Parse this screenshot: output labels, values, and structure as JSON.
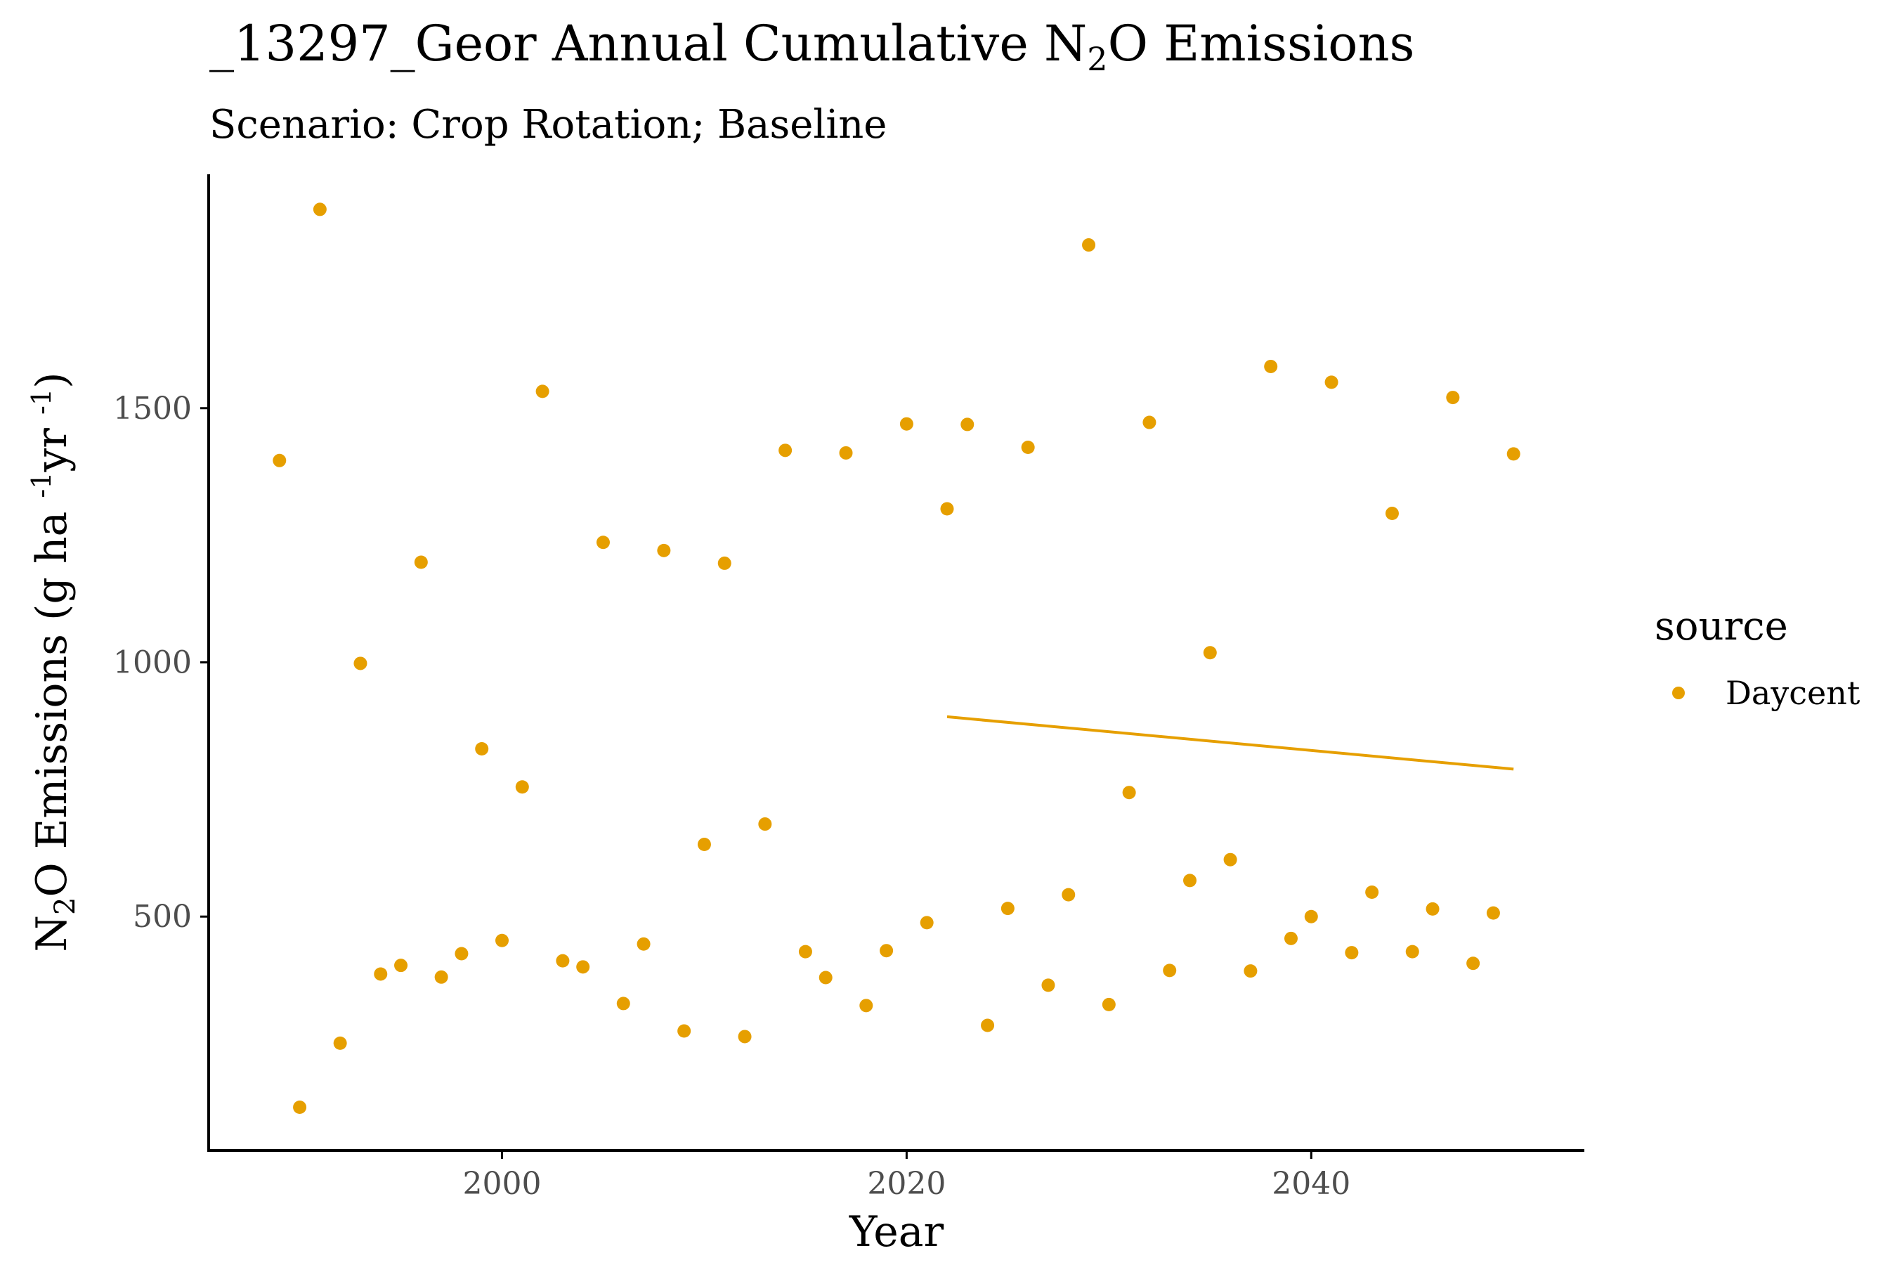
{
  "colors": {
    "daycent": "#E69F00",
    "axis": "#000000",
    "tick_text": "#4d4d4d"
  },
  "chart_data": {
    "type": "scatter",
    "title": {
      "prefix": "_13297_Geor Annual Cumulative N",
      "subscript": "2",
      "suffix": "O Emissions"
    },
    "subtitle": "Scenario: Crop Rotation; Baseline",
    "xlabel": "Year",
    "ylabel": {
      "part1": "N",
      "sub": "2",
      "part2": "O Emissions (g ha ",
      "sup1": "-1",
      "part3": "yr ",
      "sup2": "-1",
      "part4": ")"
    },
    "xlim": [
      1985.5,
      2053.5
    ],
    "ylim": [
      40,
      1960
    ],
    "xticks": [
      2000,
      2020,
      2040
    ],
    "yticks": [
      500,
      1000,
      1500
    ],
    "legend": {
      "title": "source",
      "position": "right"
    },
    "grid": false,
    "series": [
      {
        "name": "Daycent",
        "points": [
          [
            1989,
            1397
          ],
          [
            1990,
            125
          ],
          [
            1991,
            1891
          ],
          [
            1992,
            251
          ],
          [
            1993,
            998
          ],
          [
            1994,
            387
          ],
          [
            1995,
            404
          ],
          [
            1996,
            1197
          ],
          [
            1997,
            381
          ],
          [
            1998,
            427
          ],
          [
            1999,
            830
          ],
          [
            2000,
            453
          ],
          [
            2001,
            755
          ],
          [
            2002,
            1533
          ],
          [
            2003,
            413
          ],
          [
            2004,
            401
          ],
          [
            2005,
            1236
          ],
          [
            2006,
            329
          ],
          [
            2007,
            446
          ],
          [
            2008,
            1220
          ],
          [
            2009,
            275
          ],
          [
            2010,
            642
          ],
          [
            2011,
            1195
          ],
          [
            2012,
            264
          ],
          [
            2013,
            682
          ],
          [
            2014,
            1417
          ],
          [
            2015,
            431
          ],
          [
            2016,
            380
          ],
          [
            2017,
            1412
          ],
          [
            2018,
            325
          ],
          [
            2019,
            433
          ],
          [
            2020,
            1469
          ],
          [
            2021,
            488
          ],
          [
            2022,
            1302
          ],
          [
            2023,
            1468
          ],
          [
            2024,
            286
          ],
          [
            2025,
            516
          ],
          [
            2026,
            1423
          ],
          [
            2027,
            365
          ],
          [
            2028,
            543
          ],
          [
            2029,
            1821
          ],
          [
            2030,
            327
          ],
          [
            2031,
            744
          ],
          [
            2032,
            1472
          ],
          [
            2033,
            394
          ],
          [
            2034,
            571
          ],
          [
            2035,
            1019
          ],
          [
            2036,
            612
          ],
          [
            2037,
            393
          ],
          [
            2038,
            1582
          ],
          [
            2039,
            457
          ],
          [
            2040,
            500
          ],
          [
            2041,
            1551
          ],
          [
            2042,
            429
          ],
          [
            2043,
            548
          ],
          [
            2044,
            1293
          ],
          [
            2045,
            431
          ],
          [
            2046,
            515
          ],
          [
            2047,
            1521
          ],
          [
            2048,
            408
          ],
          [
            2049,
            507
          ],
          [
            2050,
            1410
          ]
        ],
        "trend_line": [
          [
            2022,
            893
          ],
          [
            2050,
            790
          ]
        ]
      }
    ]
  }
}
